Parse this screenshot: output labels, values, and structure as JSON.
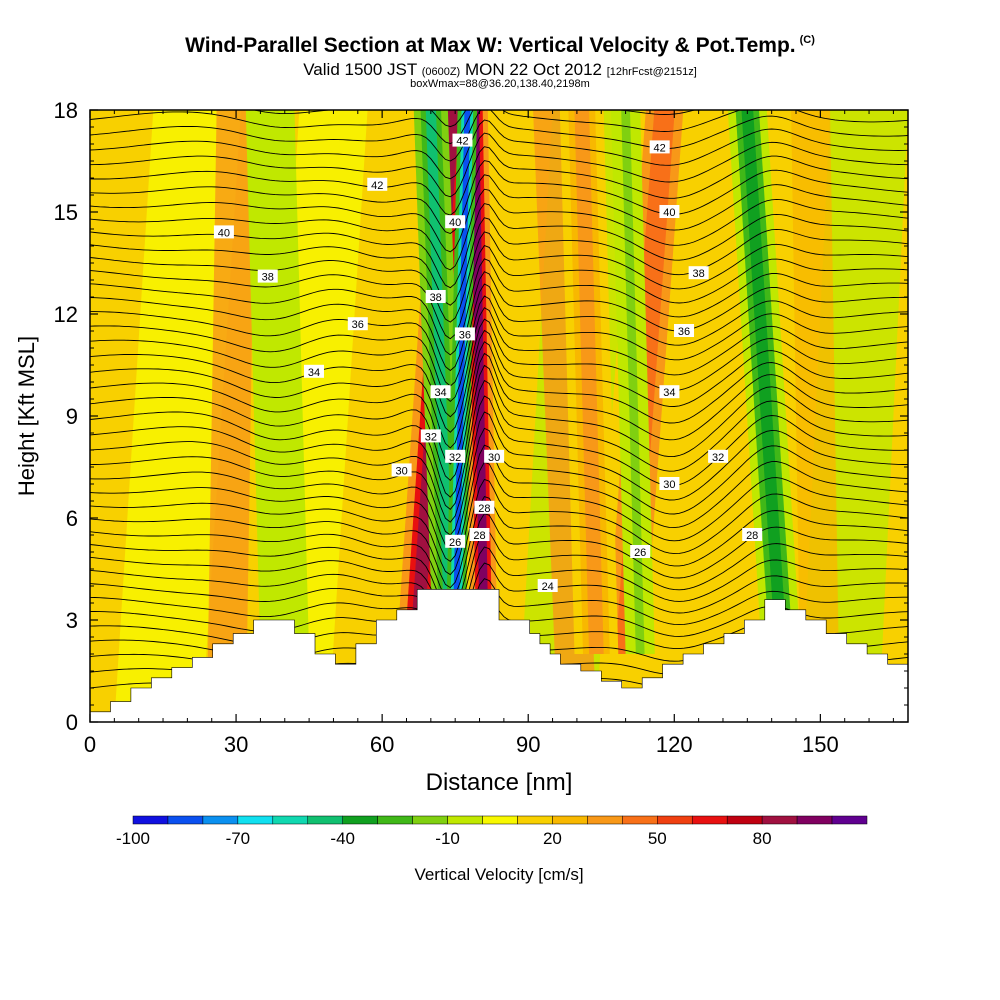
{
  "chart_data": {
    "type": "heatmap",
    "title": "Wind-Parallel Section at Max W: Vertical Velocity & Pot.Temp.",
    "title_mark": "(C)",
    "subtitle": {
      "a": "Valid 1500 JST",
      "b": "(0600Z)",
      "c": "MON 22 Oct 2012",
      "d": "[12hrFcst@2151z]"
    },
    "subtitle2": "boxWmax=88@36.20,138.40,2198m",
    "xlabel": "Distance [nm]",
    "ylabel": "Height [Kft MSL]",
    "xlim": [
      0,
      168
    ],
    "ylim": [
      0,
      18
    ],
    "xticks": [
      0,
      30,
      60,
      90,
      120,
      150
    ],
    "yticks": [
      0,
      3,
      6,
      9,
      12,
      15,
      18
    ],
    "colorbar": {
      "label": "Vertical Velocity [cm/s]",
      "tick_labels": [
        "-100",
        "-70",
        "-40",
        "-10",
        "20",
        "50",
        "80"
      ],
      "colors": [
        "#1010e0",
        "#0a50f0",
        "#0a90f0",
        "#10e0f0",
        "#10d8b0",
        "#10c070",
        "#10a020",
        "#40b818",
        "#80d010",
        "#c0e800",
        "#f8f800",
        "#f8d000",
        "#f8b800",
        "#f89818",
        "#f87018",
        "#f04010",
        "#e81010",
        "#c00010",
        "#a01040",
        "#800060",
        "#600090"
      ]
    },
    "contour_labels": [
      {
        "text": "42",
        "x": 59,
        "y": 15.8
      },
      {
        "text": "40",
        "x": 27.5,
        "y": 14.4
      },
      {
        "text": "38",
        "x": 36.5,
        "y": 13.1
      },
      {
        "text": "36",
        "x": 55,
        "y": 11.7
      },
      {
        "text": "34",
        "x": 46,
        "y": 10.3
      },
      {
        "text": "32",
        "x": 70,
        "y": 8.4
      },
      {
        "text": "30",
        "x": 64,
        "y": 7.4
      },
      {
        "text": "28",
        "x": 81,
        "y": 6.3
      },
      {
        "text": "26",
        "x": 75,
        "y": 5.3
      },
      {
        "text": "38",
        "x": 71,
        "y": 12.5
      },
      {
        "text": "40",
        "x": 75,
        "y": 14.7
      },
      {
        "text": "42",
        "x": 76.5,
        "y": 17.1
      },
      {
        "text": "36",
        "x": 77,
        "y": 11.4
      },
      {
        "text": "34",
        "x": 72,
        "y": 9.7
      },
      {
        "text": "32",
        "x": 75,
        "y": 7.8
      },
      {
        "text": "30",
        "x": 83,
        "y": 7.8
      },
      {
        "text": "28",
        "x": 80,
        "y": 5.5
      },
      {
        "text": "24",
        "x": 94,
        "y": 4.0
      },
      {
        "text": "26",
        "x": 113,
        "y": 5.0
      },
      {
        "text": "30",
        "x": 119,
        "y": 7.0
      },
      {
        "text": "34",
        "x": 119,
        "y": 9.7
      },
      {
        "text": "36",
        "x": 122,
        "y": 11.5
      },
      {
        "text": "38",
        "x": 125,
        "y": 13.2
      },
      {
        "text": "40",
        "x": 119,
        "y": 15.0
      },
      {
        "text": "42",
        "x": 117,
        "y": 16.9
      },
      {
        "text": "32",
        "x": 129,
        "y": 7.8
      },
      {
        "text": "28",
        "x": 136,
        "y": 5.5
      }
    ],
    "updraft_cores": [
      {
        "x_top": 74.5,
        "x_bottom": 67,
        "w": 9,
        "value": 80
      },
      {
        "x_top": 79,
        "x_bottom": 81,
        "w": 6,
        "value": 85
      },
      {
        "x_top": 118,
        "x_bottom": 110,
        "w": 14,
        "value": 40
      },
      {
        "x_top": 101,
        "x_bottom": 104,
        "w": 10,
        "value": 30
      }
    ],
    "downdraft_cores": [
      {
        "x_top": 70,
        "x_bottom": 74,
        "w": 7,
        "value": -50
      },
      {
        "x_top": 77.5,
        "x_bottom": 75,
        "w": 4,
        "value": -90
      },
      {
        "x_top": 135,
        "x_bottom": 142,
        "w": 8,
        "value": -40
      },
      {
        "x_top": 110,
        "x_bottom": 113,
        "w": 6,
        "value": -20
      },
      {
        "x_top": 37,
        "x_bottom": 40,
        "w": 10,
        "value": -15
      }
    ],
    "terrain_kft": [
      0.3,
      0.3,
      0.6,
      0.6,
      1.0,
      1.0,
      1.3,
      1.3,
      1.6,
      1.6,
      1.9,
      1.9,
      2.3,
      2.3,
      2.6,
      2.6,
      3.0,
      3.0,
      3.0,
      3.0,
      2.6,
      2.6,
      2.0,
      2.0,
      1.7,
      1.7,
      2.3,
      2.3,
      3.0,
      3.0,
      3.3,
      3.3,
      3.9,
      3.9,
      3.9,
      3.9,
      3.9,
      3.9,
      3.9,
      3.9,
      3.0,
      3.0,
      3.0,
      2.6,
      2.3,
      2.0,
      1.7,
      1.7,
      1.5,
      1.5,
      1.2,
      1.2,
      1.0,
      1.0,
      1.3,
      1.3,
      1.7,
      1.7,
      2.0,
      2.0,
      2.3,
      2.3,
      2.6,
      2.6,
      3.0,
      3.0,
      3.6,
      3.6,
      3.3,
      3.3,
      3.0,
      3.0,
      2.6,
      2.6,
      2.3,
      2.3,
      2.0,
      2.0,
      1.7,
      1.7,
      1.3
    ]
  }
}
